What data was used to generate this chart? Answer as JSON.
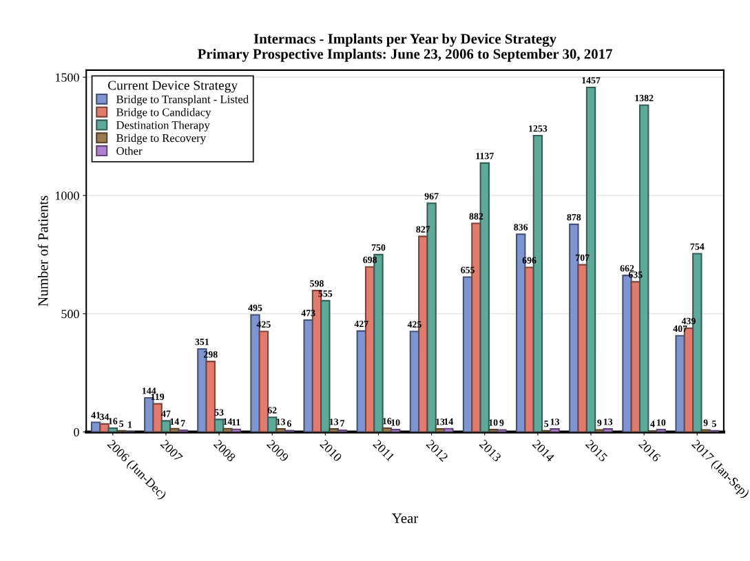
{
  "chart_data": {
    "type": "bar",
    "title": "Intermacs - Implants per Year by Device Strategy\nPrimary Prospective Implants: June 23, 2006 to September 30, 2017",
    "xlabel": "Year",
    "ylabel": "Number of Patients",
    "legend_title": "Current Device Strategy",
    "categories": [
      "2006 (Jun-Dec)",
      "2007",
      "2008",
      "2009",
      "2010",
      "2011",
      "2012",
      "2013",
      "2014",
      "2015",
      "2016",
      "2017 (Jan-Sep)"
    ],
    "series": [
      {
        "name": "Bridge to Transplant - Listed",
        "color": "#7f95d1",
        "values": [
          41,
          144,
          351,
          495,
          473,
          427,
          425,
          655,
          836,
          878,
          662,
          407
        ]
      },
      {
        "name": "Bridge to Candidacy",
        "color": "#e07b6e",
        "values": [
          34,
          119,
          298,
          425,
          598,
          698,
          827,
          882,
          696,
          707,
          635,
          439
        ]
      },
      {
        "name": "Destination Therapy",
        "color": "#5fa99a",
        "values": [
          16,
          47,
          53,
          62,
          555,
          750,
          967,
          1137,
          1253,
          1457,
          1382,
          754
        ]
      },
      {
        "name": "Bridge to Recovery",
        "color": "#9c7a4f",
        "values": [
          5,
          14,
          14,
          13,
          13,
          16,
          13,
          10,
          5,
          9,
          4,
          9
        ]
      },
      {
        "name": "Other",
        "color": "#b07fd3",
        "values": [
          1,
          7,
          11,
          6,
          7,
          10,
          14,
          9,
          13,
          13,
          10,
          5
        ]
      }
    ],
    "ylim": [
      0,
      1530
    ],
    "yticks": [
      0,
      500,
      1000,
      1500
    ],
    "grid": "y",
    "legend": "top left",
    "data_labels": true
  }
}
